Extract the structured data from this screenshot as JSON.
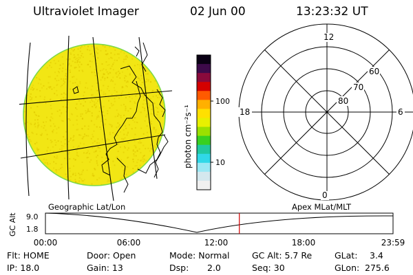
{
  "header": {
    "instrument": "Ultraviolet Imager",
    "date": "02 Jun 00",
    "time": "13:23:32 UT"
  },
  "colorbar": {
    "unit_label": "photon cm⁻²s⁻¹",
    "ticks": [
      "100",
      "10"
    ],
    "colors": [
      "#0a0014",
      "#3d0a4a",
      "#8a0a3c",
      "#d40000",
      "#ff5a00",
      "#ffb000",
      "#ffe000",
      "#e8f000",
      "#9be000",
      "#38d020",
      "#20c8a0",
      "#30d8e8",
      "#9ae8f4",
      "#d4e8ee",
      "#f0f0f0"
    ]
  },
  "globe": {
    "fill_color": "#f2e614",
    "speckle_color": "#e0c800",
    "limb_color": "#7ad84a"
  },
  "polar_plot": {
    "mlt_labels": {
      "top": "12",
      "left": "18",
      "right": "6",
      "bottom": "0"
    },
    "lat_labels": [
      "60",
      "70",
      "80"
    ]
  },
  "altitude_panel": {
    "left_label": "Geographic Lat/Lon",
    "right_label": "Apex MLat/MLT",
    "y_title": "GC Alt",
    "y_ticks": [
      "9.0",
      "1.8"
    ],
    "x_ticks": [
      "00:00",
      "06:00",
      "12:00",
      "18:00",
      "23:59"
    ],
    "current_time_fraction": 0.5579,
    "marker_color": "#d00000"
  },
  "info": {
    "row1": {
      "flt": "Flt: HOME",
      "door": "Door: Open",
      "mode": "Mode: Normal",
      "gc_alt": "GC Alt: 5.7 Re",
      "glat_label": "GLat:",
      "glat_value": "3.4"
    },
    "row2": {
      "ip": "IP: 18.0",
      "gain": "Gain: 13",
      "dsp_label": "Dsp:",
      "dsp_value": "2.0",
      "seq": "Seq: 30",
      "glon_label": "GLon:",
      "glon_value": "275.6"
    }
  }
}
